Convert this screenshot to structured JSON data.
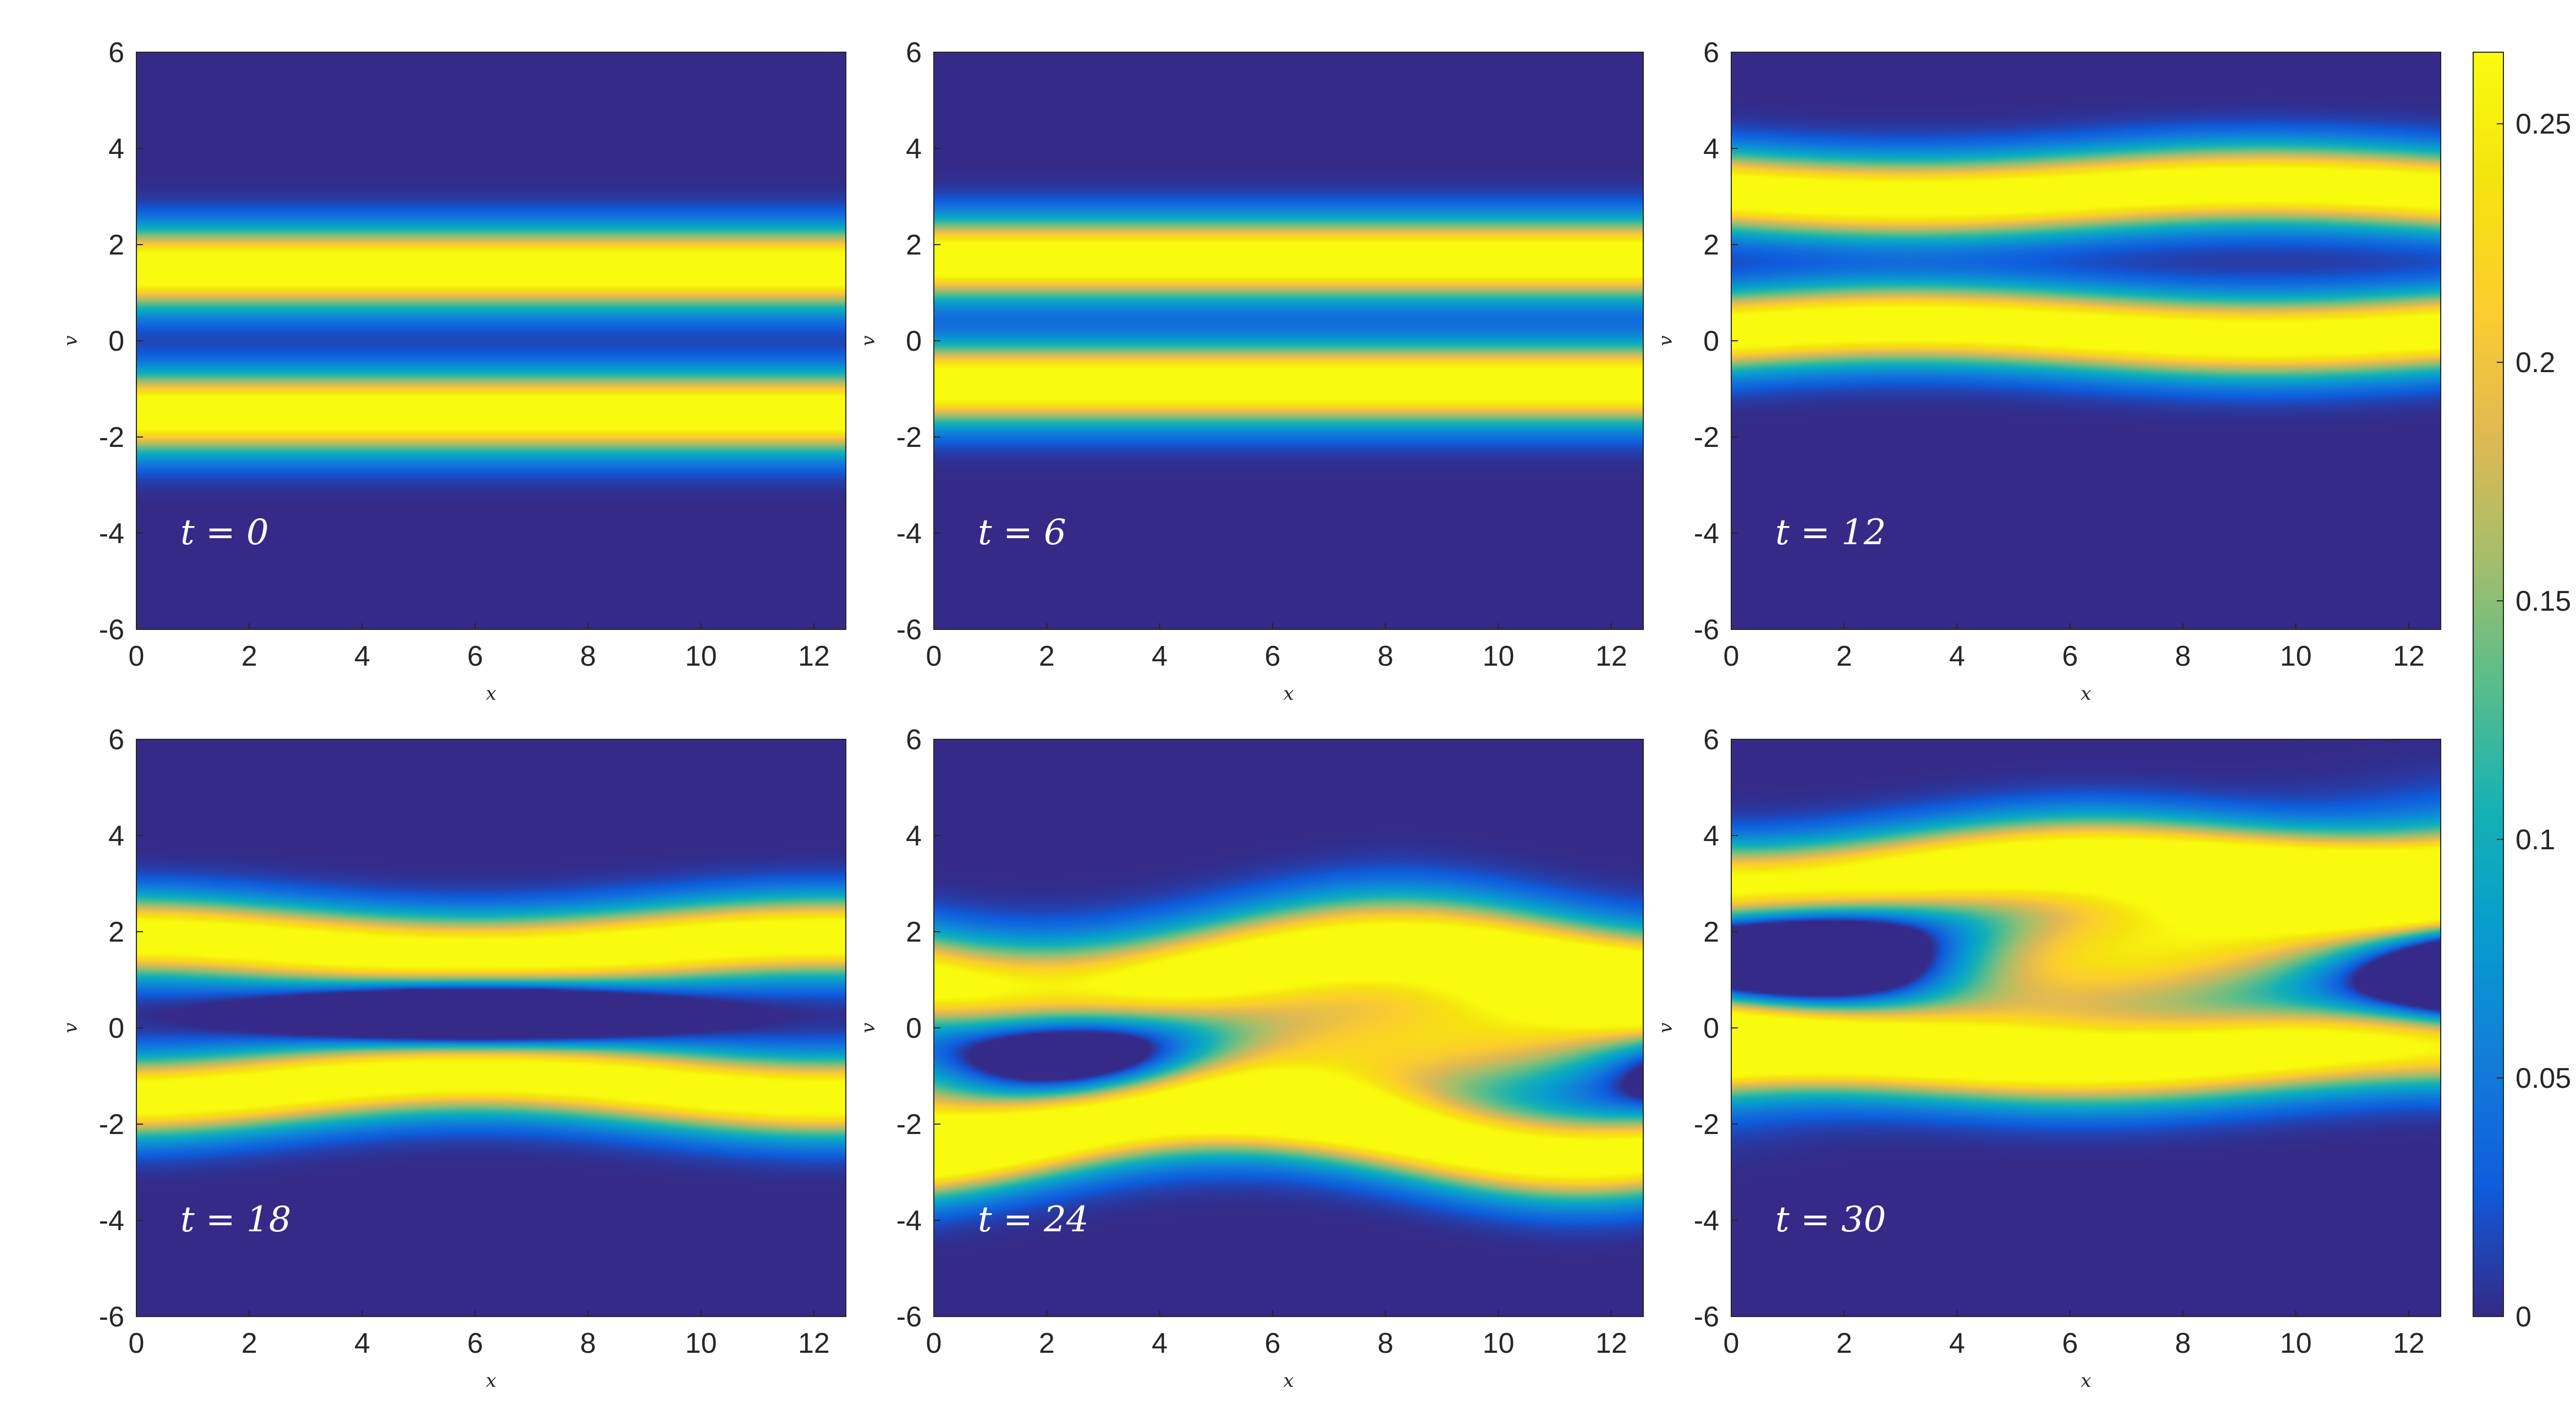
{
  "chart_data": {
    "type": "heatmap",
    "colormap": "parula",
    "colorbar": {
      "range": [
        0,
        0.265
      ],
      "ticks": [
        0,
        0.05,
        0.1,
        0.15,
        0.2,
        0.25
      ],
      "tick_labels": [
        "0",
        "0.05",
        "0.1",
        "0.15",
        "0.2",
        "0.25"
      ],
      "placement": "right"
    },
    "layout": {
      "rows": 2,
      "cols": 3
    },
    "panels": [
      {
        "time_label": "t = 0",
        "t": 0,
        "xlabel": "x",
        "ylabel": "v",
        "xlim": [
          0,
          12.566
        ],
        "ylim": [
          -6,
          6
        ],
        "xticks": [
          0,
          2,
          4,
          6,
          8,
          10,
          12
        ],
        "yticks": [
          -6,
          -4,
          -2,
          0,
          2,
          4,
          6
        ],
        "description": "two horizontal yellow bands centred at v = 1.5 and v = -1.5, dark gap at v = 0"
      },
      {
        "time_label": "t = 6",
        "t": 6,
        "xlabel": "x",
        "ylabel": "v",
        "xlim": [
          0,
          12.566
        ],
        "ylim": [
          -6,
          6
        ],
        "xticks": [
          0,
          2,
          4,
          6,
          8,
          10,
          12
        ],
        "yticks": [
          -6,
          -4,
          -2,
          0,
          2,
          4,
          6
        ],
        "description": "bands at v = 1.7 and v = -0.9"
      },
      {
        "time_label": "t = 12",
        "t": 12,
        "xlabel": "x",
        "ylabel": "v",
        "xlim": [
          0,
          12.566
        ],
        "ylim": [
          -6,
          6
        ],
        "xticks": [
          0,
          2,
          4,
          6,
          8,
          10,
          12
        ],
        "yticks": [
          -6,
          -4,
          -2,
          0,
          2,
          4,
          6
        ],
        "description": "bands at v = 3.1 and v = 0.2 with slight wave"
      },
      {
        "time_label": "t = 18",
        "t": 18,
        "xlabel": "x",
        "ylabel": "v",
        "xlim": [
          0,
          12.566
        ],
        "ylim": [
          -6,
          6
        ],
        "xticks": [
          0,
          2,
          4,
          6,
          8,
          10,
          12
        ],
        "yticks": [
          -6,
          -4,
          -2,
          0,
          2,
          4,
          6
        ],
        "description": "wavy bands near v = 1.7 and v = -1.2, vortex forming near x = 6"
      },
      {
        "time_label": "t = 24",
        "t": 24,
        "xlabel": "x",
        "ylabel": "v",
        "xlim": [
          0,
          12.566
        ],
        "ylim": [
          -6,
          6
        ],
        "xticks": [
          0,
          2,
          4,
          6,
          8,
          10,
          12
        ],
        "yticks": [
          -6,
          -4,
          -2,
          0,
          2,
          4,
          6
        ],
        "description": "phase-space hole centred near x = 2.5, v = -0.6"
      },
      {
        "time_label": "t = 30",
        "t": 30,
        "xlabel": "x",
        "ylabel": "v",
        "xlim": [
          0,
          12.566
        ],
        "ylim": [
          -6,
          6
        ],
        "xticks": [
          0,
          2,
          4,
          6,
          8,
          10,
          12
        ],
        "yticks": [
          -6,
          -4,
          -2,
          0,
          2,
          4,
          6
        ],
        "description": "phase-space hole centred near x = 1.5, v = 1.2 with filament"
      }
    ]
  }
}
